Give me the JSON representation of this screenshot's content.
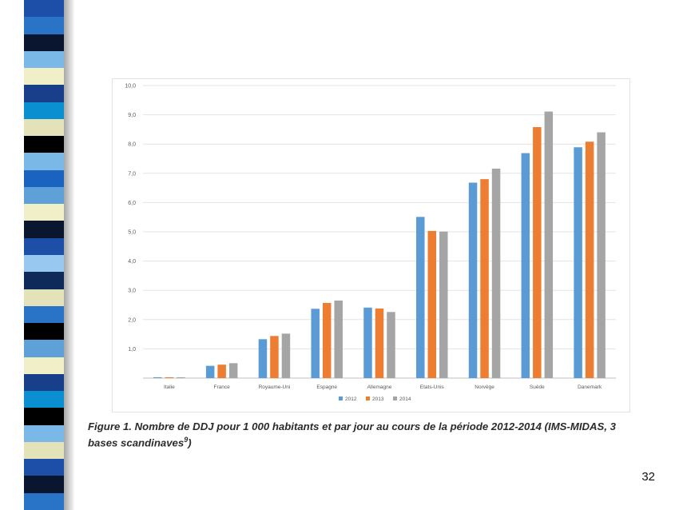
{
  "decor": {
    "stripe_colors": [
      "#1e4fa8",
      "#2a74c8",
      "#0a1630",
      "#7ab8e8",
      "#f1efc8",
      "#1a3f8a",
      "#0a8fd0",
      "#e4e2b8",
      "#000000",
      "#7ab8e8",
      "#1a64c0",
      "#5ea0d8",
      "#f1efc8",
      "#0a1630",
      "#1e4fa8",
      "#98c8f0",
      "#0d2a58",
      "#e4e2b8",
      "#2a74c8",
      "#000000",
      "#5ea0d8",
      "#f1efc8",
      "#1a3f8a",
      "#0a8fd0",
      "#000000",
      "#7ab8e8",
      "#e4e2b8",
      "#1e4fa8",
      "#0a1630",
      "#2a74c8"
    ]
  },
  "chart_data": {
    "type": "bar",
    "categories": [
      "Italie",
      "France",
      "Royaume-Uni",
      "Espagne",
      "Allemagne",
      "Etats-Unis",
      "Norvège",
      "Suède",
      "Danemark"
    ],
    "series": [
      {
        "name": "2012",
        "color": "#5b9bd5",
        "values": [
          0.03,
          0.42,
          1.33,
          2.37,
          2.41,
          5.51,
          6.68,
          7.69,
          7.89
        ]
      },
      {
        "name": "2013",
        "color": "#ed7d31",
        "values": [
          0.03,
          0.46,
          1.44,
          2.57,
          2.38,
          5.03,
          6.8,
          8.58,
          8.08
        ]
      },
      {
        "name": "2014",
        "color": "#a5a5a5",
        "values": [
          0.03,
          0.51,
          1.52,
          2.65,
          2.26,
          5.01,
          7.16,
          9.11,
          8.4
        ]
      }
    ],
    "ylim": [
      0,
      10
    ],
    "y_ticks": [
      "",
      "1,0",
      "2,0",
      "3,0",
      "4,0",
      "5,0",
      "6,0",
      "7,0",
      "8,0",
      "9,0",
      "10,0"
    ],
    "grid": true,
    "legend_position": "bottom"
  },
  "caption": {
    "text": "Figure 1. Nombre de DDJ pour 1 000 habitants et par jour au cours de la période 2012-2014 (IMS-MIDAS, 3 bases scandinaves",
    "sup": "9",
    "close": ")"
  },
  "page_number": "32"
}
